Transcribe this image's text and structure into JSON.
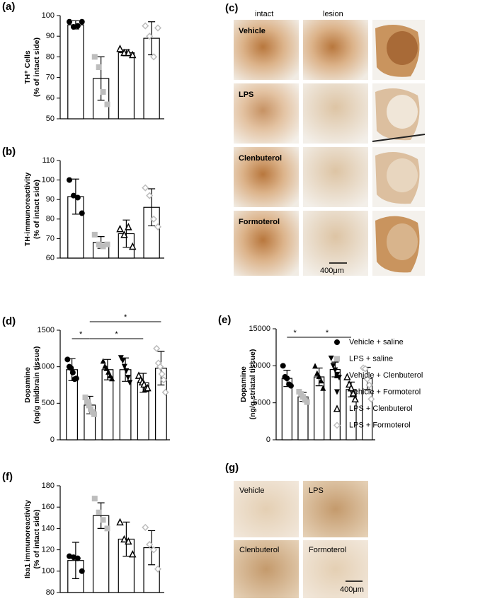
{
  "chart_data": [
    {
      "type": "bar",
      "label": "(a)",
      "ylabel": [
        "TH⁺ Cells",
        "(% of intact side)"
      ],
      "categories": [
        null,
        null,
        null,
        null
      ],
      "values": [
        95.5,
        69.5,
        82,
        89
      ],
      "errors": [
        2,
        10.5,
        1.5,
        8
      ],
      "points": [
        [
          97,
          94.5,
          95,
          97
        ],
        [
          80,
          75,
          63,
          57
        ],
        [
          84,
          82,
          82,
          81
        ],
        [
          95,
          90,
          80,
          94
        ]
      ],
      "markers": [
        "circle",
        "square",
        "triangle-open",
        "diamond-open"
      ],
      "colors": [
        "#000000",
        "#bdbdbd",
        "#000000",
        "#bdbdbd"
      ],
      "ylim": [
        50,
        100
      ],
      "yticks": [
        50,
        60,
        70,
        80,
        90,
        100
      ]
    },
    {
      "type": "bar",
      "label": "(b)",
      "ylabel": [
        "TH-immunoreactivity",
        "(% of intact side)"
      ],
      "categories": [
        null,
        null,
        null,
        null
      ],
      "values": [
        91.5,
        68,
        72.5,
        86
      ],
      "errors": [
        9,
        3,
        7,
        9.5
      ],
      "points": [
        [
          100,
          92,
          91,
          83
        ],
        [
          72,
          67,
          66,
          67
        ],
        [
          75,
          72,
          76,
          66
        ],
        [
          96,
          92,
          80,
          76
        ]
      ],
      "markers": [
        "circle",
        "square",
        "triangle-open",
        "diamond-open"
      ],
      "colors": [
        "#000000",
        "#bdbdbd",
        "#000000",
        "#bdbdbd"
      ],
      "ylim": [
        60,
        110
      ],
      "yticks": [
        60,
        70,
        80,
        90,
        100,
        110
      ]
    },
    {
      "type": "bar",
      "label": "(d)",
      "ylabel": [
        "Dopamine",
        "(ng/g midbrain tissue)"
      ],
      "categories": [
        null,
        null,
        null,
        null,
        null,
        null
      ],
      "values": [
        960,
        475,
        960,
        960,
        780,
        980
      ],
      "errors": [
        150,
        120,
        140,
        160,
        130,
        230
      ],
      "points": [
        [
          1100,
          1000,
          980,
          920,
          830,
          840
        ],
        [
          580,
          520,
          470,
          420,
          380,
          350
        ],
        [
          1080,
          1010,
          980,
          930,
          880,
          840
        ],
        [
          1120,
          1080,
          1000,
          940,
          850,
          780
        ],
        [
          880,
          820,
          790,
          760,
          700,
          710
        ],
        [
          1250,
          1050,
          1000,
          900,
          820,
          650
        ]
      ],
      "markers": [
        "circle",
        "square",
        "triangle",
        "triangle-down",
        "triangle-open",
        "diamond-open"
      ],
      "colors": [
        "#000000",
        "#bdbdbd",
        "#000000",
        "#000000",
        "#000000",
        "#bdbdbd"
      ],
      "significance": [
        {
          "groups": [
            0,
            1
          ],
          "label": "*"
        },
        {
          "groups": [
            1,
            4
          ],
          "label": "*"
        },
        {
          "groups": [
            1,
            5
          ],
          "label": "*"
        }
      ],
      "ylim": [
        0,
        1500
      ],
      "yticks": [
        0,
        500,
        1000,
        1500
      ]
    },
    {
      "type": "bar",
      "label": "(e)",
      "ylabel": [
        "Dopamine",
        "(ng/g striatal tissue)"
      ],
      "categories": [
        null,
        null,
        null,
        null,
        null,
        null
      ],
      "values": [
        8300,
        5800,
        8500,
        9500,
        6800,
        8300
      ],
      "errors": [
        1100,
        600,
        1200,
        1000,
        1000,
        1500
      ],
      "points": [
        [
          10000,
          8500,
          8300,
          7500,
          7300
        ],
        [
          6500,
          6200,
          5800,
          5400,
          5100
        ],
        [
          10000,
          9000,
          8600,
          8000,
          7000
        ],
        [
          11000,
          10000,
          9400,
          8800,
          8400
        ],
        [
          8500,
          7500,
          7000,
          6300,
          5500
        ],
        [
          9700,
          9600,
          8200,
          7400,
          5500
        ]
      ],
      "markers": [
        "circle",
        "square",
        "triangle",
        "triangle-down",
        "triangle-open",
        "diamond-open"
      ],
      "colors": [
        "#000000",
        "#bdbdbd",
        "#000000",
        "#000000",
        "#000000",
        "#bdbdbd"
      ],
      "significance": [
        {
          "groups": [
            0,
            1
          ],
          "label": "*"
        },
        {
          "groups": [
            1,
            4
          ],
          "label": "*"
        }
      ],
      "ylim": [
        0,
        15000
      ],
      "yticks": [
        0,
        5000,
        10000,
        15000
      ]
    },
    {
      "type": "bar",
      "label": "(f)",
      "ylabel": [
        "Iba1 immunoreactivity",
        "(% of intact side)"
      ],
      "categories": [
        null,
        null,
        null,
        null
      ],
      "values": [
        110,
        152,
        130,
        122
      ],
      "errors": [
        17,
        12,
        16,
        16
      ],
      "points": [
        [
          114,
          113,
          112,
          100
        ],
        [
          168,
          155,
          148,
          140
        ],
        [
          146,
          130,
          128,
          116
        ],
        [
          141,
          125,
          120,
          102
        ]
      ],
      "markers": [
        "circle",
        "square",
        "triangle-open",
        "diamond-open"
      ],
      "colors": [
        "#000000",
        "#bdbdbd",
        "#000000",
        "#bdbdbd"
      ],
      "ylim": [
        80,
        180
      ],
      "yticks": [
        80,
        100,
        120,
        140,
        160,
        180
      ]
    }
  ],
  "legend": [
    {
      "name": "Vehicle + saline",
      "marker": "circle",
      "color": "#000000"
    },
    {
      "name": "LPS + saline",
      "marker": "square",
      "color": "#bdbdbd"
    },
    {
      "name": "Vehicle + Clenbuterol",
      "marker": "triangle",
      "color": "#000000"
    },
    {
      "name": "Vehicle + Formoterol",
      "marker": "triangle-down",
      "color": "#000000"
    },
    {
      "name": "LPS + Clenbuterol",
      "marker": "triangle-open",
      "color": "#000000"
    },
    {
      "name": "LPS + Formoterol",
      "marker": "diamond-open",
      "color": "#bdbdbd"
    }
  ],
  "images": {
    "c": {
      "label": "(c)",
      "columns": [
        "intact",
        "lesion"
      ],
      "rows": [
        "Vehicle",
        "LPS",
        "Clenbuterol",
        "Formoterol"
      ],
      "scale": "400μm"
    },
    "g": {
      "label": "(g)",
      "panels": [
        "Vehicle",
        "LPS",
        "Clenbuterol",
        "Formoterol"
      ],
      "scale": "400μm"
    }
  }
}
